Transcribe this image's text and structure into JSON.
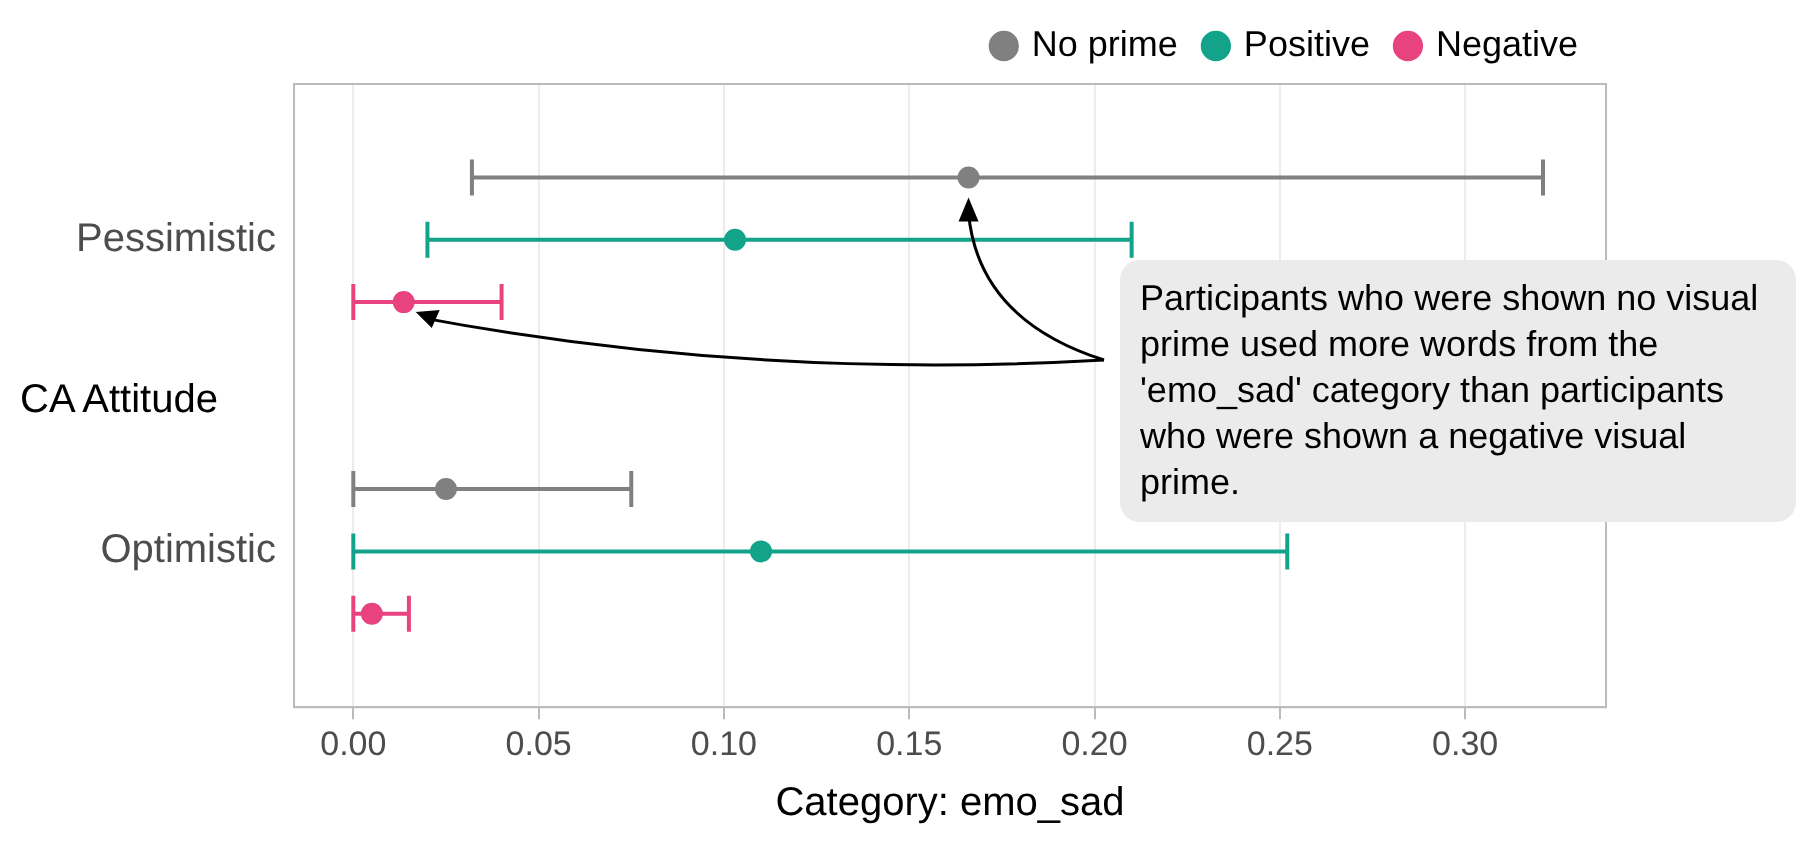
{
  "chart_data": {
    "type": "scatter",
    "orientation": "horizontal",
    "xlabel": "Category: emo_sad",
    "ylabel": "CA Attitude",
    "categories": [
      "Pessimistic",
      "Optimistic"
    ],
    "series": [
      {
        "name": "No prime",
        "color": "#808080",
        "values": [
          0.166,
          0.025
        ],
        "errors": [
          [
            0.032,
            0.321
          ],
          [
            0.0,
            0.075
          ]
        ]
      },
      {
        "name": "Positive",
        "color": "#12a38a",
        "values": [
          0.103,
          0.11
        ],
        "errors": [
          [
            0.02,
            0.21
          ],
          [
            0.0,
            0.252
          ]
        ]
      },
      {
        "name": "Negative",
        "color": "#e8437f",
        "values": [
          0.0136,
          0.005
        ],
        "errors": [
          [
            0.0,
            0.04
          ],
          [
            0.0,
            0.015
          ]
        ]
      }
    ],
    "xlim": [
      -0.016,
      0.338
    ],
    "xticks": [
      {
        "value": 0,
        "label": "0.00"
      },
      0.05,
      {
        "value": 0.1,
        "label": "0.10"
      },
      0.15,
      {
        "value": 0.2,
        "label": "0.20"
      },
      0.25,
      {
        "value": 0.3,
        "label": "0.30"
      }
    ],
    "grid": "x",
    "legend": "top right",
    "marker": "circle",
    "annotations": [
      "Participants who were shown no visual prime used more words from the 'emo_sad' category than participants who were shown a negative visual prime."
    ]
  }
}
